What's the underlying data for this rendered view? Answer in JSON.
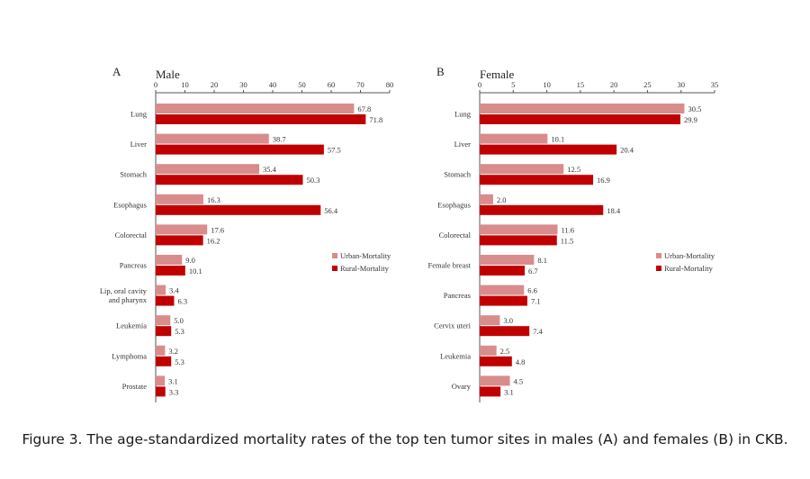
{
  "figure": {
    "caption": "Figure 3. The age-standardized mortality rates of the top ten tumor sites in males (A) and females (B) in CKB."
  },
  "colors": {
    "urban": "#d98c8c",
    "rural": "#c00000",
    "axis": "#555555"
  },
  "chart_data": [
    {
      "type": "bar",
      "orientation": "horizontal",
      "panel_label": "A",
      "title": "Male",
      "xlim": [
        0,
        80
      ],
      "xticks": [
        0,
        10,
        20,
        30,
        40,
        50,
        60,
        70,
        80
      ],
      "categories": [
        "Lung",
        "Liver",
        "Stomach",
        "Esophagus",
        "Colorectal",
        "Pancreas",
        "Lip, oral cavity and pharynx",
        "Leukemia",
        "Lymphoma",
        "Prostate"
      ],
      "series": [
        {
          "name": "Urban-Mortality",
          "values": [
            67.8,
            38.7,
            35.4,
            16.3,
            17.6,
            9.0,
            3.4,
            5.0,
            3.2,
            3.1
          ]
        },
        {
          "name": "Rural-Mortality",
          "values": [
            71.8,
            57.5,
            50.3,
            56.4,
            16.2,
            10.1,
            6.3,
            5.3,
            5.3,
            3.3
          ]
        }
      ],
      "legend": "right"
    },
    {
      "type": "bar",
      "orientation": "horizontal",
      "panel_label": "B",
      "title": "Female",
      "xlim": [
        0,
        35
      ],
      "xticks": [
        0,
        5,
        10,
        15,
        20,
        25,
        30,
        35
      ],
      "categories": [
        "Lung",
        "Liver",
        "Stomach",
        "Esophagus",
        "Colorectal",
        "Female breast",
        "Pancreas",
        "Cervix uteri",
        "Leukemia",
        "Ovary"
      ],
      "series": [
        {
          "name": "Urban-Mortality",
          "values": [
            30.5,
            10.1,
            12.5,
            2.0,
            11.6,
            8.1,
            6.6,
            3.0,
            2.5,
            4.5
          ]
        },
        {
          "name": "Rural-Mortality",
          "values": [
            29.9,
            20.4,
            16.9,
            18.4,
            11.5,
            6.7,
            7.1,
            7.4,
            4.8,
            3.1
          ]
        }
      ],
      "legend": "right"
    }
  ]
}
